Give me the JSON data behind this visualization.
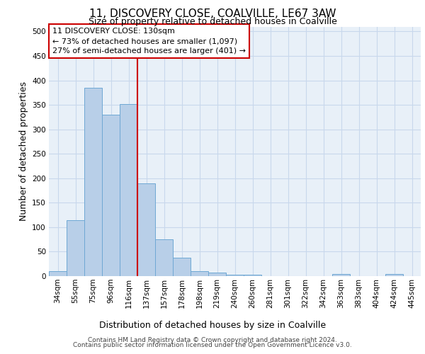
{
  "title_line1": "11, DISCOVERY CLOSE, COALVILLE, LE67 3AW",
  "title_line2": "Size of property relative to detached houses in Coalville",
  "xlabel": "Distribution of detached houses by size in Coalville",
  "ylabel": "Number of detached properties",
  "categories": [
    "34sqm",
    "55sqm",
    "75sqm",
    "96sqm",
    "116sqm",
    "137sqm",
    "157sqm",
    "178sqm",
    "198sqm",
    "219sqm",
    "240sqm",
    "260sqm",
    "281sqm",
    "301sqm",
    "322sqm",
    "342sqm",
    "363sqm",
    "383sqm",
    "404sqm",
    "424sqm",
    "445sqm"
  ],
  "values": [
    10,
    115,
    385,
    330,
    352,
    190,
    75,
    38,
    10,
    7,
    3,
    3,
    0,
    0,
    0,
    0,
    5,
    0,
    0,
    5,
    0
  ],
  "bar_color": "#b8cfe8",
  "bar_edge_color": "#6fa8d4",
  "vline_x": 4.5,
  "vline_color": "#cc0000",
  "annotation_text": "11 DISCOVERY CLOSE: 130sqm\n← 73% of detached houses are smaller (1,097)\n27% of semi-detached houses are larger (401) →",
  "annotation_box_color": "#ffffff",
  "annotation_box_edge_color": "#cc0000",
  "ylim": [
    0,
    510
  ],
  "yticks": [
    0,
    50,
    100,
    150,
    200,
    250,
    300,
    350,
    400,
    450,
    500
  ],
  "footer_line1": "Contains HM Land Registry data © Crown copyright and database right 2024.",
  "footer_line2": "Contains public sector information licensed under the Open Government Licence v3.0.",
  "grid_color": "#c8d8ec",
  "background_color": "#e8f0f8",
  "title1_fontsize": 11,
  "title2_fontsize": 9,
  "ylabel_fontsize": 9,
  "xlabel_fontsize": 9,
  "tick_fontsize": 7.5,
  "annot_fontsize": 8,
  "footer_fontsize": 6.5
}
